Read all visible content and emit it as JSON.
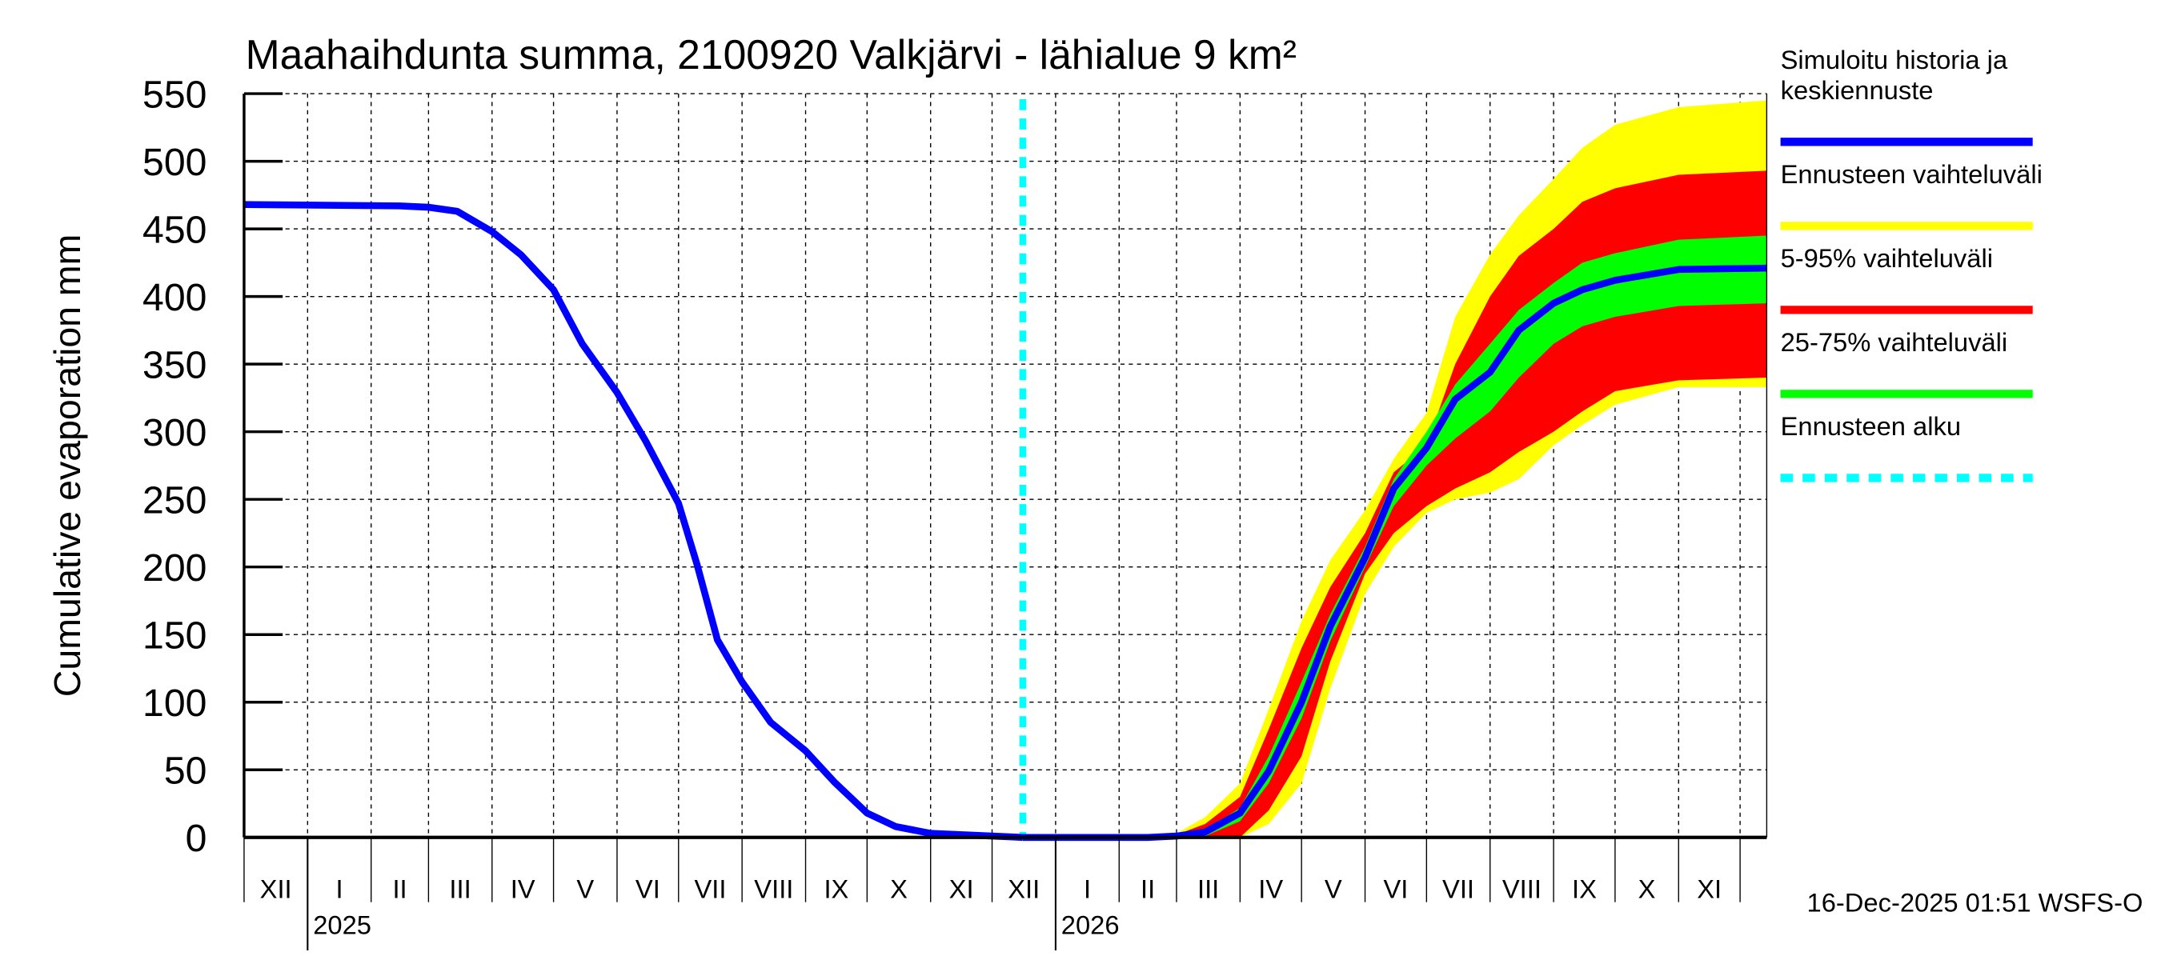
{
  "chart_data": {
    "type": "area",
    "title": "Maahaihdunta summa, 2100920 Valkjärvi - lähialue 9 km²",
    "ylabel": "Cumulative evaporation   mm",
    "xlabel": "",
    "ylim": [
      0,
      550
    ],
    "yticks": [
      0,
      50,
      100,
      150,
      200,
      250,
      300,
      350,
      400,
      450,
      500,
      550
    ],
    "xlim": [
      "2024-12-01",
      "2026-12-14"
    ],
    "grid": true,
    "month_labels": [
      "XII",
      "I",
      "II",
      "III",
      "IV",
      "V",
      "VI",
      "VII",
      "VIII",
      "IX",
      "X",
      "XI",
      "XII",
      "I",
      "II",
      "III",
      "IV",
      "V",
      "VI",
      "VII",
      "VIII",
      "IX",
      "X",
      "XI"
    ],
    "year_labels": [
      {
        "year": "2025",
        "date": "2025-01-01"
      },
      {
        "year": "2026",
        "date": "2026-01-01"
      }
    ],
    "forecast_start": "2025-12-16",
    "footer": "16-Dec-2025 01:51 WSFS-O",
    "legend_placement": "right",
    "colors": {
      "median": "#0000ff",
      "range": "#ffff00",
      "p5_95": "#ff0000",
      "p25_75": "#00ff00",
      "forecast_start": "#00ffff"
    },
    "legend": [
      {
        "label": "Simuloitu historia ja keskiennuste",
        "lines": [
          "Simuloitu historia ja",
          "keskiennuste"
        ],
        "color": "#0000ff",
        "style": "solid"
      },
      {
        "label": "Ennusteen vaihteluväli",
        "lines": [
          "Ennusteen vaihteluväli"
        ],
        "color": "#ffff00",
        "style": "solid"
      },
      {
        "label": "5-95% vaihteluväli",
        "lines": [
          "5-95% vaihteluväli"
        ],
        "color": "#ff0000",
        "style": "solid"
      },
      {
        "label": "25-75% vaihteluväli",
        "lines": [
          "25-75% vaihteluväli"
        ],
        "color": "#00ff00",
        "style": "solid"
      },
      {
        "label": "Ennusteen alku",
        "lines": [
          "Ennusteen alku"
        ],
        "color": "#00ffff",
        "style": "dashed"
      }
    ],
    "series": {
      "history": {
        "x": [
          "2024-12-01",
          "2025-02-15",
          "2025-03-01",
          "2025-03-15",
          "2025-04-01",
          "2025-04-15",
          "2025-05-01",
          "2025-05-15",
          "2025-06-01",
          "2025-06-15",
          "2025-07-01",
          "2025-07-10",
          "2025-07-20",
          "2025-08-01",
          "2025-08-15",
          "2025-09-01",
          "2025-09-15",
          "2025-10-01",
          "2025-10-15",
          "2025-11-01",
          "2025-12-01",
          "2025-12-16"
        ],
        "y": [
          468,
          467,
          466,
          463,
          448,
          431,
          405,
          365,
          329,
          293,
          247,
          202,
          146,
          115,
          85,
          64,
          41,
          18,
          8,
          3,
          1,
          0
        ]
      },
      "forecast": {
        "x": [
          "2025-12-16",
          "2026-02-15",
          "2026-03-01",
          "2026-03-15",
          "2026-04-01",
          "2026-04-15",
          "2026-05-01",
          "2026-05-15",
          "2026-06-01",
          "2026-06-15",
          "2026-07-01",
          "2026-07-15",
          "2026-08-01",
          "2026-08-15",
          "2026-09-01",
          "2026-09-15",
          "2026-10-01",
          "2026-11-01",
          "2026-12-14"
        ],
        "median": [
          0,
          0,
          1,
          4,
          18,
          49,
          100,
          156,
          207,
          258,
          288,
          324,
          344,
          375,
          395,
          405,
          412,
          420,
          421
        ],
        "min": [
          0,
          0,
          0,
          0,
          0,
          10,
          40,
          110,
          180,
          215,
          240,
          250,
          255,
          265,
          290,
          305,
          320,
          333,
          333
        ],
        "p5": [
          0,
          0,
          0,
          0,
          0,
          20,
          60,
          130,
          195,
          225,
          245,
          258,
          270,
          285,
          300,
          315,
          330,
          338,
          340
        ],
        "p25": [
          0,
          0,
          0,
          1,
          12,
          40,
          88,
          145,
          200,
          245,
          275,
          295,
          315,
          340,
          365,
          378,
          385,
          393,
          395
        ],
        "p75": [
          0,
          0,
          1,
          5,
          22,
          60,
          115,
          165,
          215,
          265,
          300,
          335,
          365,
          390,
          410,
          425,
          432,
          442,
          445
        ],
        "p95": [
          0,
          0,
          2,
          10,
          30,
          80,
          140,
          185,
          225,
          270,
          290,
          350,
          400,
          430,
          450,
          470,
          480,
          490,
          493
        ],
        "max": [
          0,
          0,
          3,
          15,
          40,
          95,
          160,
          205,
          242,
          280,
          314,
          385,
          431,
          460,
          487,
          510,
          527,
          540,
          545
        ]
      }
    }
  }
}
